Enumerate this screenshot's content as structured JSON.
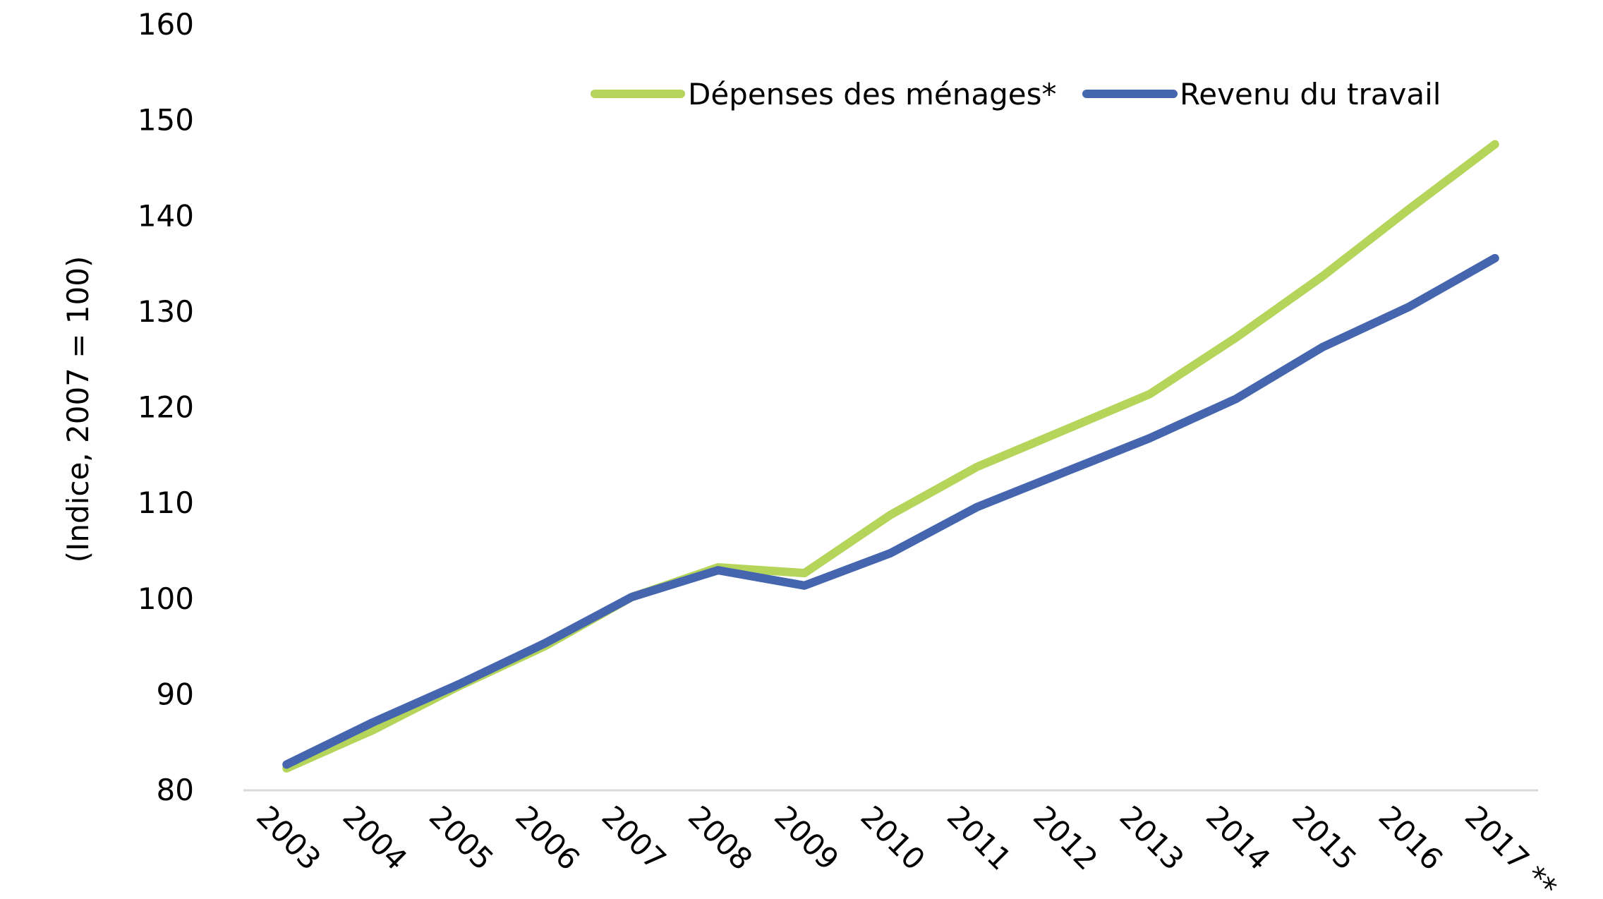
{
  "chart_data": {
    "type": "line",
    "title": "",
    "xlabel": "",
    "ylabel": "(Indice, 2007 = 100)",
    "ylim": [
      80,
      160
    ],
    "yticks": [
      80,
      90,
      100,
      110,
      120,
      130,
      140,
      150,
      160
    ],
    "ytick_labels": [
      "80",
      "90",
      "100",
      "110",
      "120",
      "130",
      "140",
      "150",
      "160"
    ],
    "categories": [
      "2003",
      "2004",
      "2005",
      "2006",
      "2007",
      "2008",
      "2009",
      "2010",
      "2011",
      "2012",
      "2013",
      "2014",
      "2015",
      "2016",
      "2017 **"
    ],
    "grid": false,
    "legend_position": "top-right",
    "series": [
      {
        "name": "Dépenses des ménages*",
        "color": "#B5D55A",
        "values": [
          82.3,
          86.3,
          90.9,
          95.1,
          100.2,
          103.3,
          102.7,
          108.8,
          113.8,
          117.6,
          121.4,
          127.3,
          133.7,
          140.7,
          147.5
        ]
      },
      {
        "name": "Revenu du travail",
        "color": "#4566AE",
        "values": [
          82.7,
          87.1,
          91.1,
          95.4,
          100.2,
          103.0,
          101.4,
          104.8,
          109.6,
          113.2,
          116.8,
          120.9,
          126.3,
          130.5,
          135.6
        ]
      }
    ]
  }
}
